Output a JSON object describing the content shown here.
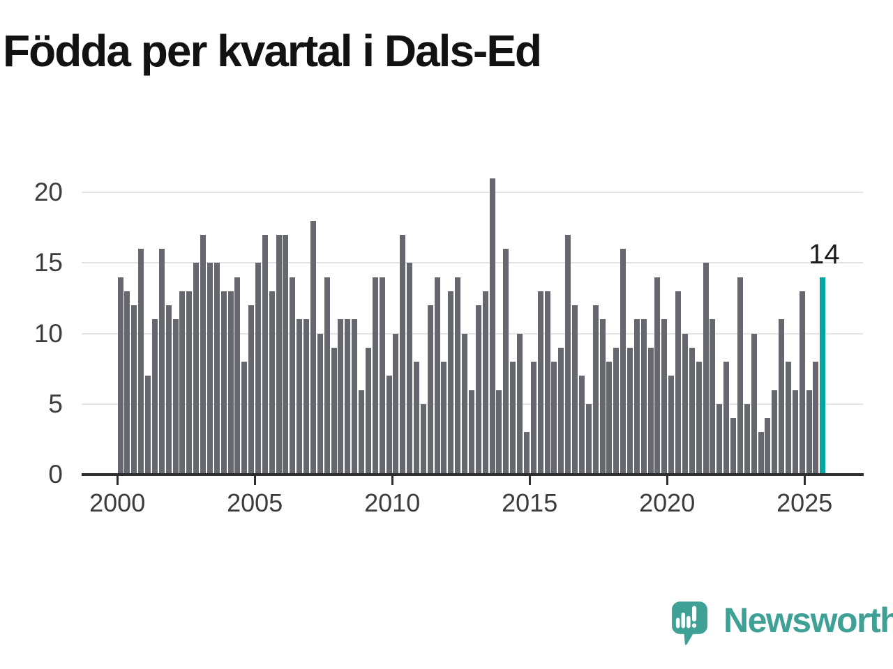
{
  "title": "Födda per kvartal i Dals-Ed",
  "chart_data": {
    "type": "bar",
    "title": "Födda per kvartal i Dals-Ed",
    "x_start": "2000-Q1",
    "x_frequency": "quarterly",
    "x_end": "2025-Q3",
    "values": [
      14,
      13,
      12,
      16,
      7,
      11,
      16,
      12,
      11,
      13,
      13,
      15,
      17,
      15,
      15,
      13,
      13,
      14,
      8,
      12,
      15,
      17,
      13,
      17,
      17,
      14,
      11,
      11,
      18,
      10,
      14,
      9,
      11,
      11,
      11,
      6,
      9,
      14,
      14,
      7,
      10,
      17,
      15,
      8,
      5,
      12,
      14,
      8,
      13,
      14,
      10,
      6,
      12,
      13,
      21,
      6,
      16,
      8,
      10,
      3,
      8,
      13,
      13,
      8,
      9,
      17,
      12,
      7,
      5,
      12,
      11,
      8,
      9,
      16,
      9,
      11,
      11,
      9,
      14,
      11,
      7,
      13,
      10,
      9,
      8,
      15,
      11,
      5,
      8,
      4,
      14,
      5,
      10,
      3,
      4,
      6,
      11,
      8,
      6,
      13,
      6,
      8,
      14
    ],
    "x_tick_labels": [
      "2000",
      "2005",
      "2010",
      "2015",
      "2020",
      "2025"
    ],
    "y_ticks": [
      0,
      5,
      10,
      15,
      20
    ],
    "ylim": [
      0,
      21.5
    ],
    "grid": true,
    "legend": "none",
    "bar_color": "#67676f",
    "highlight_index": 102,
    "highlight_color": "#05a6a0",
    "highlight_value_label": "14"
  },
  "footer": {
    "brand": "Newsworthy",
    "brand_color": "#3fa096",
    "logo_icon": "speech-bubble-bar-chart-icon"
  }
}
